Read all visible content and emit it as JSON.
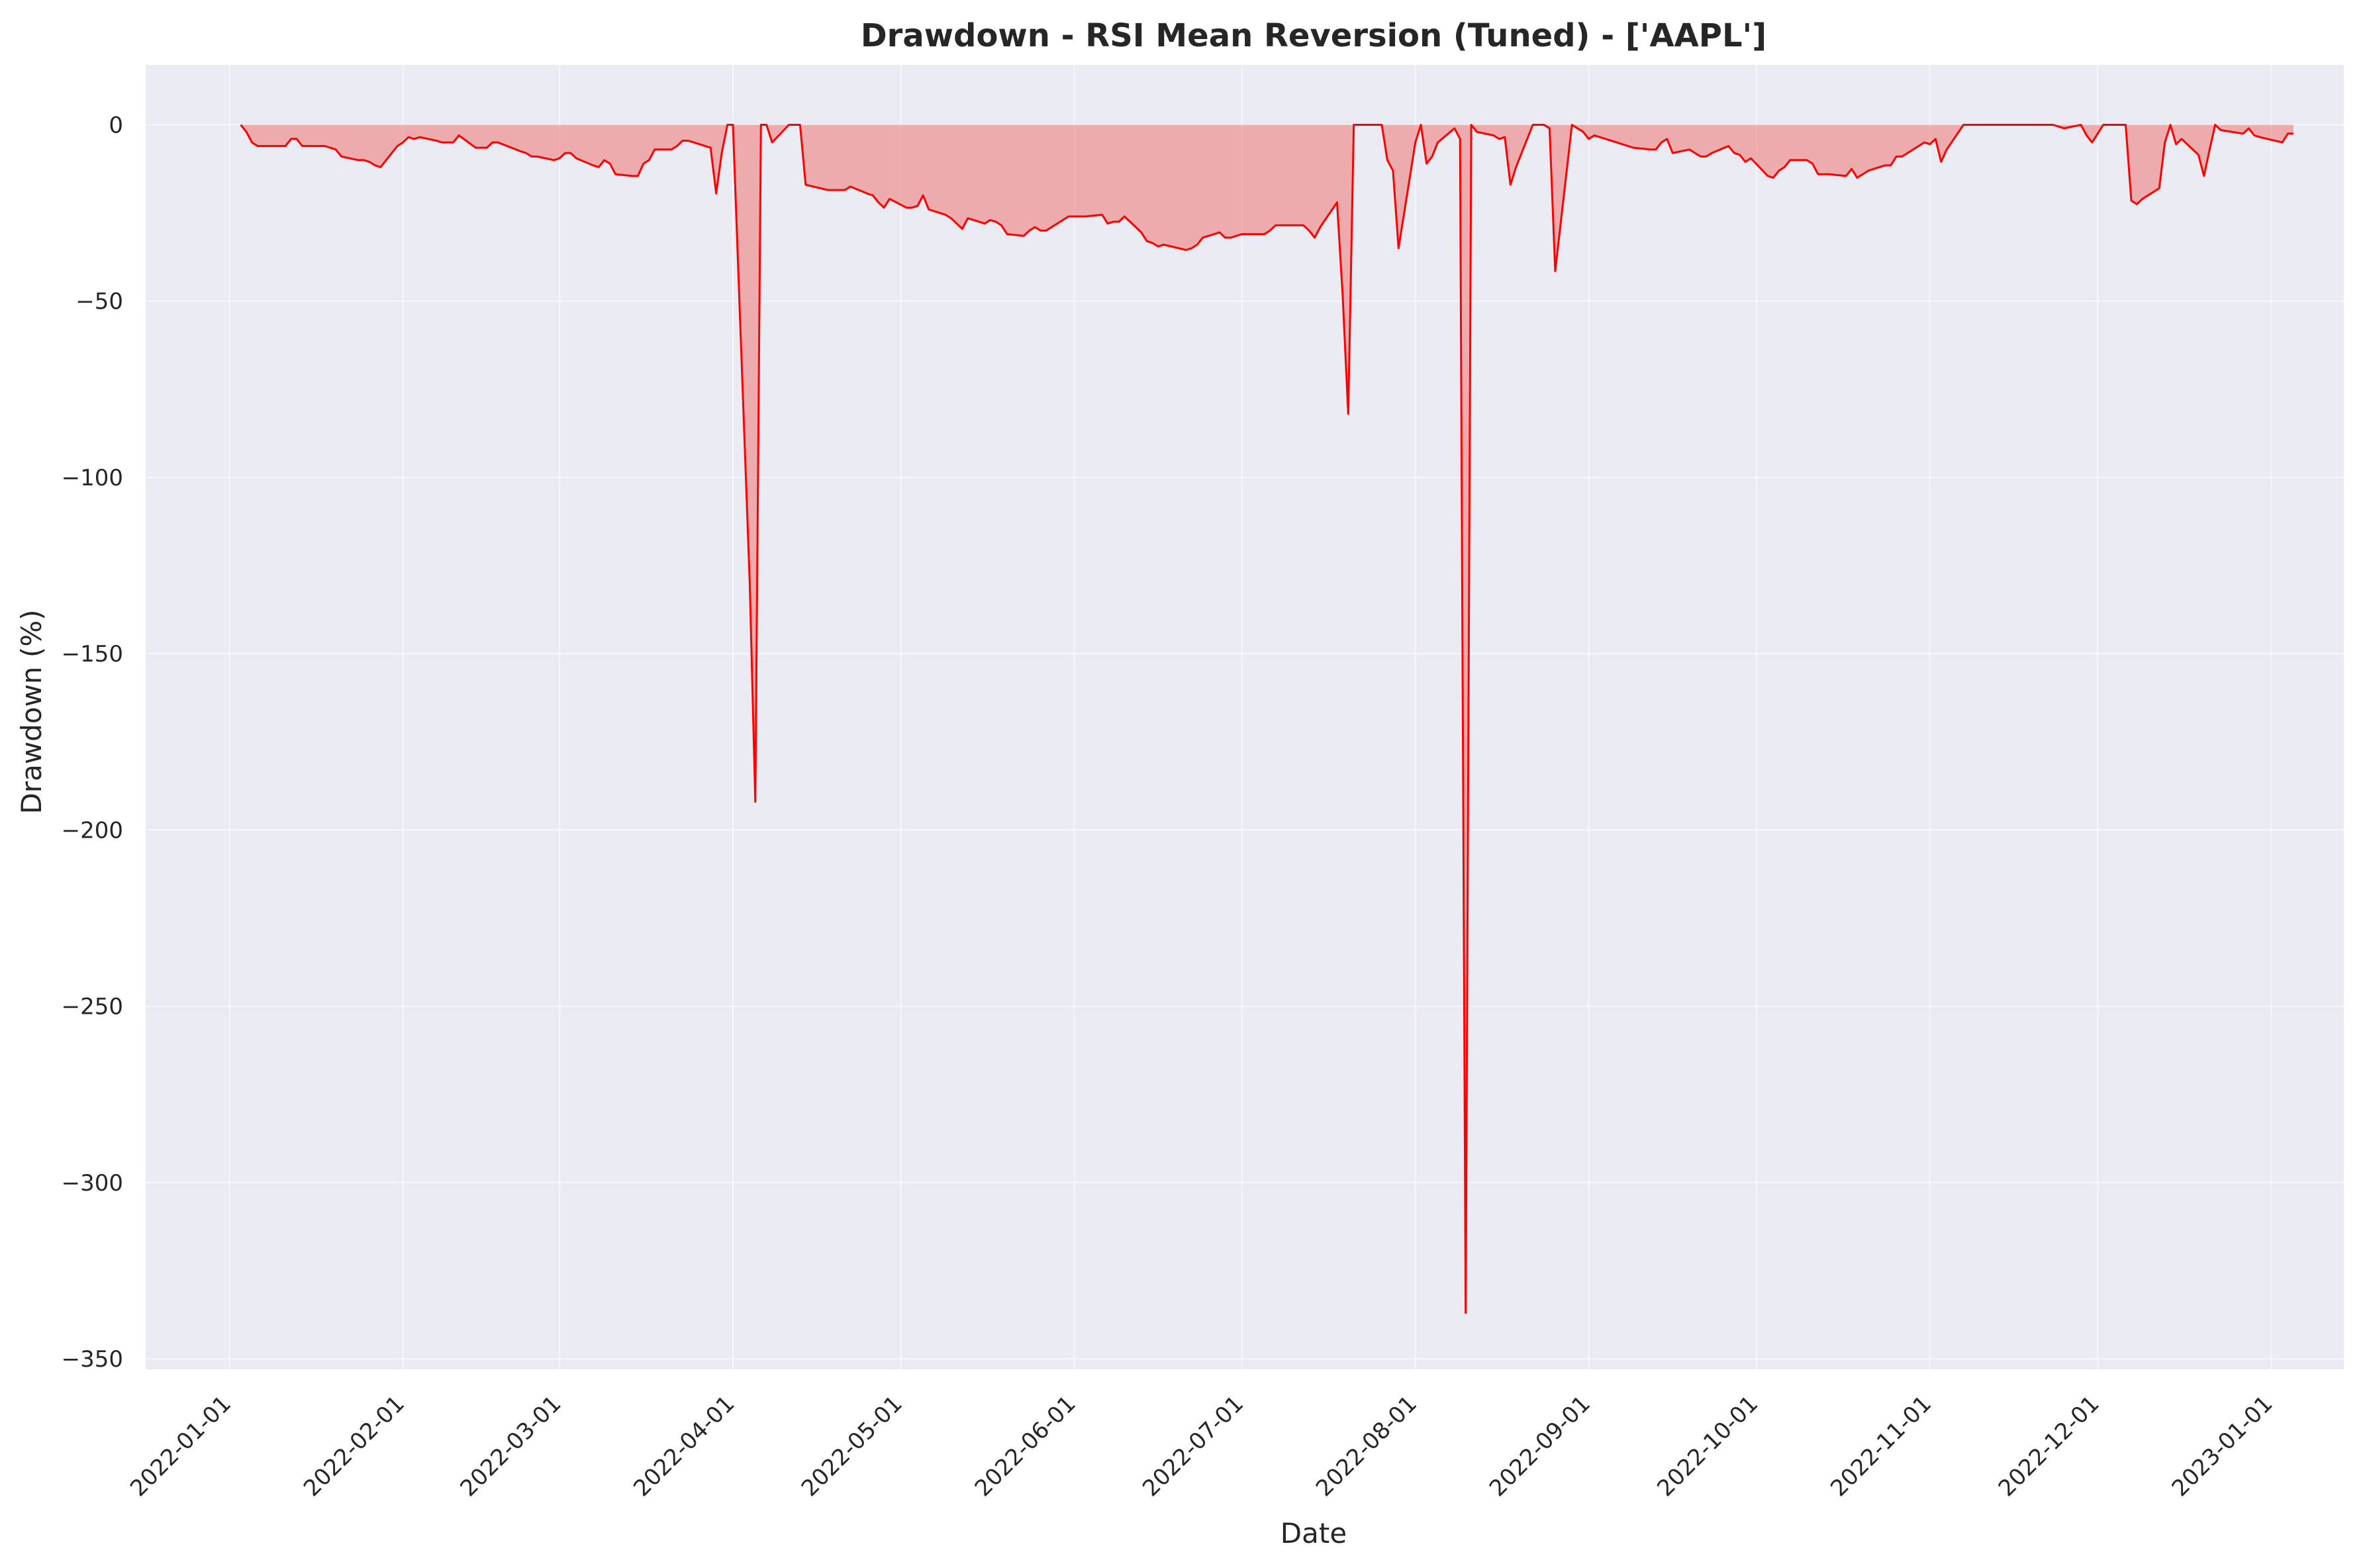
{
  "chart_data": {
    "type": "area",
    "title": "Drawdown - RSI Mean Reversion (Tuned) - ['AAPL']",
    "xlabel": "Date",
    "ylabel": "Drawdown (%)",
    "x_range": [
      "2021-12-17",
      "2023-01-14"
    ],
    "ylim": [
      -353,
      17
    ],
    "x_ticks": [
      "2022-01-01",
      "2022-02-01",
      "2022-03-01",
      "2022-04-01",
      "2022-05-01",
      "2022-06-01",
      "2022-07-01",
      "2022-08-01",
      "2022-09-01",
      "2022-10-01",
      "2022-11-01",
      "2022-12-01",
      "2023-01-01"
    ],
    "y_ticks": [
      0,
      -50,
      -100,
      -150,
      -200,
      -250,
      -300,
      -350
    ],
    "grid": true,
    "legend": "none",
    "colors": {
      "line": "#ff0000",
      "fill": "#f08080",
      "plot_bg": "#eaeaf2",
      "grid": "#ffffff"
    },
    "series": [
      {
        "points": [
          [
            "2022-01-03",
            0
          ],
          [
            "2022-01-04",
            -2
          ],
          [
            "2022-01-05",
            -5
          ],
          [
            "2022-01-06",
            -6
          ],
          [
            "2022-01-07",
            -6
          ],
          [
            "2022-01-10",
            -6
          ],
          [
            "2022-01-11",
            -6
          ],
          [
            "2022-01-12",
            -4
          ],
          [
            "2022-01-13",
            -4
          ],
          [
            "2022-01-14",
            -6
          ],
          [
            "2022-01-18",
            -6
          ],
          [
            "2022-01-19",
            -6.5
          ],
          [
            "2022-01-20",
            -7
          ],
          [
            "2022-01-21",
            -9
          ],
          [
            "2022-01-24",
            -10
          ],
          [
            "2022-01-25",
            -10
          ],
          [
            "2022-01-26",
            -10.5
          ],
          [
            "2022-01-27",
            -11.5
          ],
          [
            "2022-01-28",
            -12
          ],
          [
            "2022-01-31",
            -6
          ],
          [
            "2022-02-01",
            -5
          ],
          [
            "2022-02-02",
            -3.5
          ],
          [
            "2022-02-03",
            -4
          ],
          [
            "2022-02-04",
            -3.5
          ],
          [
            "2022-02-07",
            -4.5
          ],
          [
            "2022-02-08",
            -5
          ],
          [
            "2022-02-09",
            -5
          ],
          [
            "2022-02-10",
            -5
          ],
          [
            "2022-02-11",
            -3
          ],
          [
            "2022-02-14",
            -6.5
          ],
          [
            "2022-02-15",
            -6.5
          ],
          [
            "2022-02-16",
            -6.5
          ],
          [
            "2022-02-17",
            -5
          ],
          [
            "2022-02-18",
            -5
          ],
          [
            "2022-02-22",
            -7.5
          ],
          [
            "2022-02-23",
            -8
          ],
          [
            "2022-02-24",
            -9
          ],
          [
            "2022-02-25",
            -9
          ],
          [
            "2022-02-28",
            -10
          ],
          [
            "2022-03-01",
            -9.5
          ],
          [
            "2022-03-02",
            -8
          ],
          [
            "2022-03-03",
            -8
          ],
          [
            "2022-03-04",
            -9.5
          ],
          [
            "2022-03-07",
            -11.5
          ],
          [
            "2022-03-08",
            -12
          ],
          [
            "2022-03-09",
            -10
          ],
          [
            "2022-03-10",
            -11
          ],
          [
            "2022-03-11",
            -14
          ],
          [
            "2022-03-14",
            -14.5
          ],
          [
            "2022-03-15",
            -14.5
          ],
          [
            "2022-03-16",
            -11
          ],
          [
            "2022-03-17",
            -10
          ],
          [
            "2022-03-18",
            -7
          ],
          [
            "2022-03-21",
            -7
          ],
          [
            "2022-03-22",
            -6
          ],
          [
            "2022-03-23",
            -4.5
          ],
          [
            "2022-03-24",
            -4.5
          ],
          [
            "2022-03-25",
            -5
          ],
          [
            "2022-03-28",
            -6.5
          ],
          [
            "2022-03-29",
            -19.5
          ],
          [
            "2022-03-30",
            -8
          ],
          [
            "2022-03-31",
            0
          ],
          [
            "2022-04-01",
            0
          ],
          [
            "2022-04-04",
            -130
          ],
          [
            "2022-04-05",
            -192
          ],
          [
            "2022-04-06",
            0
          ],
          [
            "2022-04-07",
            0
          ],
          [
            "2022-04-08",
            -5
          ],
          [
            "2022-04-11",
            0
          ],
          [
            "2022-04-12",
            0
          ],
          [
            "2022-04-13",
            0
          ],
          [
            "2022-04-14",
            -17
          ],
          [
            "2022-04-18",
            -18.5
          ],
          [
            "2022-04-19",
            -18.5
          ],
          [
            "2022-04-20",
            -18.5
          ],
          [
            "2022-04-21",
            -18.5
          ],
          [
            "2022-04-22",
            -17.5
          ],
          [
            "2022-04-25",
            -19.5
          ],
          [
            "2022-04-26",
            -20
          ],
          [
            "2022-04-27",
            -22
          ],
          [
            "2022-04-28",
            -23.5
          ],
          [
            "2022-04-29",
            -21
          ],
          [
            "2022-05-02",
            -23.5
          ],
          [
            "2022-05-03",
            -23.5
          ],
          [
            "2022-05-04",
            -23
          ],
          [
            "2022-05-05",
            -20
          ],
          [
            "2022-05-06",
            -24
          ],
          [
            "2022-05-09",
            -25.5
          ],
          [
            "2022-05-10",
            -26.5
          ],
          [
            "2022-05-11",
            -28
          ],
          [
            "2022-05-12",
            -29.5
          ],
          [
            "2022-05-13",
            -26.5
          ],
          [
            "2022-05-16",
            -28
          ],
          [
            "2022-05-17",
            -27
          ],
          [
            "2022-05-18",
            -27.5
          ],
          [
            "2022-05-19",
            -28.5
          ],
          [
            "2022-05-20",
            -31
          ],
          [
            "2022-05-23",
            -31.5
          ],
          [
            "2022-05-24",
            -30
          ],
          [
            "2022-05-25",
            -29
          ],
          [
            "2022-05-26",
            -30
          ],
          [
            "2022-05-27",
            -30
          ],
          [
            "2022-05-31",
            -26
          ],
          [
            "2022-06-01",
            -26
          ],
          [
            "2022-06-02",
            -26
          ],
          [
            "2022-06-03",
            -26
          ],
          [
            "2022-06-06",
            -25.5
          ],
          [
            "2022-06-07",
            -28
          ],
          [
            "2022-06-08",
            -27.5
          ],
          [
            "2022-06-09",
            -27.5
          ],
          [
            "2022-06-10",
            -26
          ],
          [
            "2022-06-13",
            -30.5
          ],
          [
            "2022-06-14",
            -33
          ],
          [
            "2022-06-15",
            -33.5
          ],
          [
            "2022-06-16",
            -34.5
          ],
          [
            "2022-06-17",
            -34
          ],
          [
            "2022-06-21",
            -35.5
          ],
          [
            "2022-06-22",
            -35
          ],
          [
            "2022-06-23",
            -34
          ],
          [
            "2022-06-24",
            -32
          ],
          [
            "2022-06-27",
            -30.5
          ],
          [
            "2022-06-28",
            -32
          ],
          [
            "2022-06-29",
            -32
          ],
          [
            "2022-06-30",
            -31.5
          ],
          [
            "2022-07-01",
            -31
          ],
          [
            "2022-07-05",
            -31
          ],
          [
            "2022-07-06",
            -30
          ],
          [
            "2022-07-07",
            -28.5
          ],
          [
            "2022-07-08",
            -28.5
          ],
          [
            "2022-07-11",
            -28.5
          ],
          [
            "2022-07-12",
            -28.5
          ],
          [
            "2022-07-13",
            -30
          ],
          [
            "2022-07-14",
            -32
          ],
          [
            "2022-07-15",
            -29
          ],
          [
            "2022-07-18",
            -22
          ],
          [
            "2022-07-19",
            -48
          ],
          [
            "2022-07-20",
            -82
          ],
          [
            "2022-07-21",
            0
          ],
          [
            "2022-07-22",
            0
          ],
          [
            "2022-07-25",
            0
          ],
          [
            "2022-07-26",
            0
          ],
          [
            "2022-07-27",
            -10
          ],
          [
            "2022-07-28",
            -13
          ],
          [
            "2022-07-29",
            -35
          ],
          [
            "2022-08-01",
            -5
          ],
          [
            "2022-08-02",
            0
          ],
          [
            "2022-08-03",
            -11
          ],
          [
            "2022-08-04",
            -9
          ],
          [
            "2022-08-05",
            -5
          ],
          [
            "2022-08-08",
            -1
          ],
          [
            "2022-08-09",
            -4
          ],
          [
            "2022-08-10",
            -337
          ],
          [
            "2022-08-11",
            0
          ],
          [
            "2022-08-12",
            -2
          ],
          [
            "2022-08-15",
            -3
          ],
          [
            "2022-08-16",
            -4
          ],
          [
            "2022-08-17",
            -3.5
          ],
          [
            "2022-08-18",
            -17
          ],
          [
            "2022-08-19",
            -12
          ],
          [
            "2022-08-22",
            0
          ],
          [
            "2022-08-23",
            0
          ],
          [
            "2022-08-24",
            0
          ],
          [
            "2022-08-25",
            -1
          ],
          [
            "2022-08-26",
            -41.5
          ],
          [
            "2022-08-29",
            0
          ],
          [
            "2022-08-30",
            -1
          ],
          [
            "2022-08-31",
            -2
          ],
          [
            "2022-09-01",
            -4
          ],
          [
            "2022-09-02",
            -3
          ],
          [
            "2022-09-06",
            -5
          ],
          [
            "2022-09-07",
            -5.5
          ],
          [
            "2022-09-08",
            -6
          ],
          [
            "2022-09-09",
            -6.5
          ],
          [
            "2022-09-12",
            -7
          ],
          [
            "2022-09-13",
            -7
          ],
          [
            "2022-09-14",
            -5
          ],
          [
            "2022-09-15",
            -4
          ],
          [
            "2022-09-16",
            -8
          ],
          [
            "2022-09-19",
            -7
          ],
          [
            "2022-09-20",
            -8
          ],
          [
            "2022-09-21",
            -9
          ],
          [
            "2022-09-22",
            -9
          ],
          [
            "2022-09-23",
            -8
          ],
          [
            "2022-09-26",
            -6
          ],
          [
            "2022-09-27",
            -8
          ],
          [
            "2022-09-28",
            -8.5
          ],
          [
            "2022-09-29",
            -10.5
          ],
          [
            "2022-09-30",
            -9.5
          ],
          [
            "2022-10-03",
            -14.5
          ],
          [
            "2022-10-04",
            -15
          ],
          [
            "2022-10-05",
            -13
          ],
          [
            "2022-10-06",
            -12
          ],
          [
            "2022-10-07",
            -10
          ],
          [
            "2022-10-10",
            -10
          ],
          [
            "2022-10-11",
            -11
          ],
          [
            "2022-10-12",
            -14
          ],
          [
            "2022-10-13",
            -14
          ],
          [
            "2022-10-14",
            -14
          ],
          [
            "2022-10-17",
            -14.5
          ],
          [
            "2022-10-18",
            -12.5
          ],
          [
            "2022-10-19",
            -15
          ],
          [
            "2022-10-20",
            -14
          ],
          [
            "2022-10-21",
            -13
          ],
          [
            "2022-10-24",
            -11.5
          ],
          [
            "2022-10-25",
            -11.5
          ],
          [
            "2022-10-26",
            -9
          ],
          [
            "2022-10-27",
            -9
          ],
          [
            "2022-10-28",
            -8
          ],
          [
            "2022-10-31",
            -5
          ],
          [
            "2022-11-01",
            -5.5
          ],
          [
            "2022-11-02",
            -4
          ],
          [
            "2022-11-03",
            -10.5
          ],
          [
            "2022-11-04",
            -7
          ],
          [
            "2022-11-07",
            0
          ],
          [
            "2022-11-08",
            0
          ],
          [
            "2022-11-09",
            0
          ],
          [
            "2022-11-10",
            0
          ],
          [
            "2022-11-11",
            0
          ],
          [
            "2022-11-14",
            0
          ],
          [
            "2022-11-15",
            0
          ],
          [
            "2022-11-16",
            0
          ],
          [
            "2022-11-17",
            0
          ],
          [
            "2022-11-18",
            0
          ],
          [
            "2022-11-21",
            0
          ],
          [
            "2022-11-22",
            0
          ],
          [
            "2022-11-23",
            0
          ],
          [
            "2022-11-25",
            -1
          ],
          [
            "2022-11-28",
            0
          ],
          [
            "2022-11-29",
            -3
          ],
          [
            "2022-11-30",
            -5
          ],
          [
            "2022-12-01",
            -2.5
          ],
          [
            "2022-12-02",
            0
          ],
          [
            "2022-12-05",
            0
          ],
          [
            "2022-12-06",
            0
          ],
          [
            "2022-12-07",
            -21.5
          ],
          [
            "2022-12-08",
            -22.5
          ],
          [
            "2022-12-09",
            -21
          ],
          [
            "2022-12-12",
            -18
          ],
          [
            "2022-12-13",
            -5
          ],
          [
            "2022-12-14",
            0
          ],
          [
            "2022-12-15",
            -5.5
          ],
          [
            "2022-12-16",
            -4
          ],
          [
            "2022-12-19",
            -8.5
          ],
          [
            "2022-12-20",
            -14.5
          ],
          [
            "2022-12-21",
            -7
          ],
          [
            "2022-12-22",
            0
          ],
          [
            "2022-12-23",
            -1.5
          ],
          [
            "2022-12-27",
            -2.5
          ],
          [
            "2022-12-28",
            -1
          ],
          [
            "2022-12-29",
            -3
          ],
          [
            "2022-12-30",
            -3.5
          ],
          [
            "2023-01-03",
            -5
          ],
          [
            "2023-01-04",
            -2.5
          ],
          [
            "2023-01-05",
            -2.5
          ]
        ]
      }
    ]
  }
}
